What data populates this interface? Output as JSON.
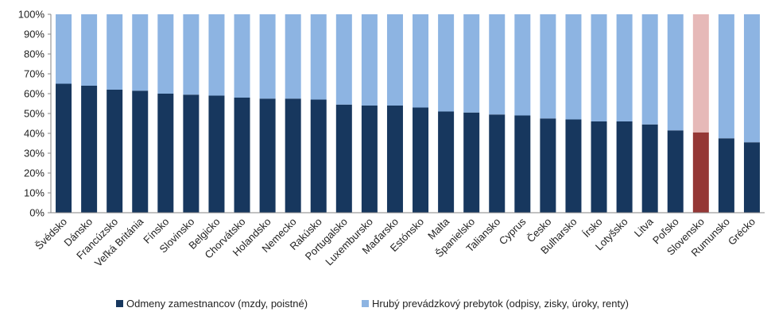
{
  "chart_data": {
    "type": "bar",
    "stacked": true,
    "categories": [
      "Švédsko",
      "Dánsko",
      "Francúzsko",
      "Veľká Británia",
      "Fínsko",
      "Slovinsko",
      "Belgicko",
      "Chorvátsko",
      "Holandsko",
      "Nemecko",
      "Rakúsko",
      "Portugalsko",
      "Luxembursko",
      "Maďarsko",
      "Estónsko",
      "Malta",
      "Španielsko",
      "Taliansko",
      "Cyprus",
      "Česko",
      "Bulharsko",
      "Írsko",
      "Lotyšsko",
      "Litva",
      "Poľsko",
      "Slovensko",
      "Rumunsko",
      "Grécko"
    ],
    "series": [
      {
        "name": "Odmeny zamestnancov (mzdy, poistné)",
        "values": [
          65,
          64,
          62,
          61.5,
          60,
          59.5,
          59,
          58,
          57.5,
          57.5,
          57,
          54.5,
          54,
          54,
          53,
          51,
          50.5,
          49.5,
          49,
          47.5,
          47,
          46,
          46,
          44.5,
          41.5,
          40.5,
          37.5,
          35.5
        ]
      },
      {
        "name": "Hrubý prevádzkový prebytok (odpisy, zisky, úroky, renty)",
        "values": [
          35,
          36,
          38,
          38.5,
          40,
          40.5,
          41,
          42,
          42.5,
          42.5,
          43,
          45.5,
          46,
          46,
          47,
          49,
          49.5,
          50.5,
          51,
          52.5,
          53,
          54,
          54,
          55.5,
          58.5,
          59.5,
          62.5,
          64.5
        ]
      }
    ],
    "yticks": [
      "0%",
      "10%",
      "20%",
      "30%",
      "40%",
      "50%",
      "60%",
      "70%",
      "80%",
      "90%",
      "100%"
    ],
    "ylim": [
      0,
      100
    ],
    "highlight_category": "Slovensko",
    "colors": {
      "series1": "#17375e",
      "series2": "#8db4e2",
      "highlight1": "#953735",
      "highlight2": "#e6b9b8",
      "axis": "#868686"
    },
    "legend_position": "bottom"
  }
}
